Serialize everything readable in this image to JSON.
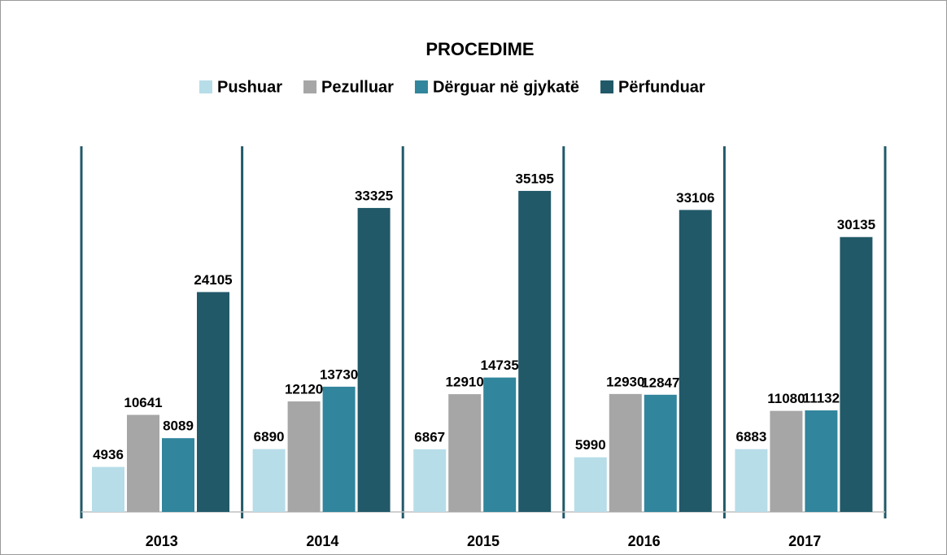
{
  "chart_data": {
    "type": "bar",
    "title": "PROCEDIME",
    "categories": [
      "2013",
      "2014",
      "2015",
      "2016",
      "2017"
    ],
    "series": [
      {
        "name": "Pushuar",
        "color": "#b7dde8",
        "values": [
          4936,
          6890,
          6867,
          5990,
          6883
        ]
      },
      {
        "name": "Pezulluar",
        "color": "#a6a6a6",
        "values": [
          10641,
          12120,
          12910,
          12930,
          11080
        ]
      },
      {
        "name": "Dërguar në gjykatë",
        "color": "#31859c",
        "values": [
          8089,
          13730,
          14735,
          12847,
          11132
        ]
      },
      {
        "name": "Përfunduar",
        "color": "#215968",
        "values": [
          24105,
          33325,
          35195,
          33106,
          30135
        ]
      }
    ],
    "ylim": [
      0,
      40000
    ],
    "legend": "top"
  }
}
